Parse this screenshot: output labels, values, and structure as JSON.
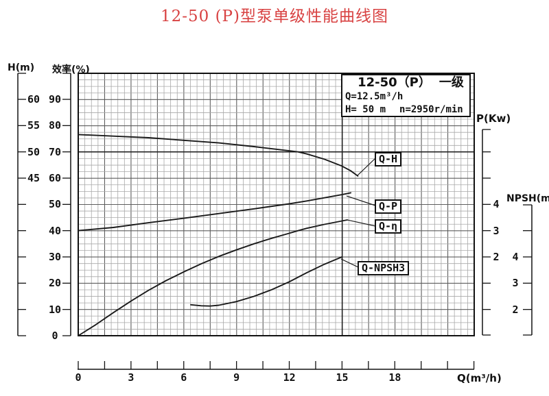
{
  "title": "12-50 (P)型泵单级性能曲线图",
  "info_box": {
    "model": "12-50（P）",
    "stage": "一级",
    "flow": "Q=12.5m³/h",
    "head": "H= 50 m",
    "speed": "n=2950r/min"
  },
  "axes": {
    "head": {
      "label": "H(m)",
      "tick_labels": [
        "60",
        "55",
        "50",
        "45"
      ]
    },
    "efficiency": {
      "label": "效率(%)",
      "tick_labels": [
        "90",
        "80",
        "70",
        "60",
        "50",
        "40",
        "30",
        "20",
        "10",
        "0"
      ]
    },
    "power": {
      "label": "P(Kw)",
      "tick_labels": [
        "4",
        "3",
        "2"
      ]
    },
    "npsh": {
      "label": "NPSH(m)",
      "tick_labels": [
        "4",
        "3",
        "2"
      ]
    },
    "flow": {
      "label": "Q(m³/h)",
      "tick_labels": [
        "0",
        "3",
        "6",
        "9",
        "12",
        "15",
        "18"
      ]
    }
  },
  "curve_labels": {
    "qh": "Q-H",
    "qp": "Q-P",
    "qeta": "Q-η",
    "qnpsh": "Q-NPSH3"
  },
  "colors": {
    "title": "#d84242",
    "curve": "#1a1a1a",
    "grid_minor": "#a8a8a8",
    "grid_major": "#5d5d5d",
    "axis": "#111111"
  },
  "chart_data": {
    "type": "line",
    "title": "12-50 (P)型泵单级性能曲线图",
    "grid": "fine graph-paper grid, major line every 4 minor cells",
    "x_axis": {
      "label": "Q(m³/h)",
      "range": [
        0,
        22.5
      ],
      "ticks": [
        0,
        3,
        6,
        9,
        12,
        15,
        18
      ]
    },
    "y_axes": [
      {
        "name": "H",
        "label": "H(m)",
        "ticks": [
          60,
          55,
          50,
          45
        ]
      },
      {
        "name": "efficiency",
        "label": "效率(%)",
        "ticks": [
          90,
          80,
          70,
          60,
          50,
          40,
          30,
          20,
          10,
          0
        ]
      },
      {
        "name": "P",
        "label": "P(Kw)",
        "ticks": [
          4,
          3,
          2
        ]
      },
      {
        "name": "NPSH",
        "label": "NPSH(m)",
        "ticks": [
          4,
          3,
          2
        ]
      }
    ],
    "series": [
      {
        "name": "Q-H",
        "y_axis": "H",
        "unit": "m",
        "points": [
          [
            0,
            53.3
          ],
          [
            2,
            53.0
          ],
          [
            4,
            52.7
          ],
          [
            6,
            52.2
          ],
          [
            8,
            51.7
          ],
          [
            10,
            51.0
          ],
          [
            12,
            50.2
          ],
          [
            12.5,
            50.0
          ],
          [
            13,
            49.6
          ],
          [
            14,
            48.6
          ],
          [
            15,
            47.3
          ],
          [
            15.5,
            46.4
          ],
          [
            15.9,
            45.4
          ]
        ]
      },
      {
        "name": "Q-P",
        "y_axis": "P",
        "unit": "Kw",
        "points": [
          [
            0,
            3.0
          ],
          [
            2,
            3.12
          ],
          [
            4,
            3.3
          ],
          [
            6,
            3.47
          ],
          [
            8,
            3.65
          ],
          [
            10,
            3.83
          ],
          [
            12,
            4.02
          ],
          [
            13,
            4.13
          ],
          [
            14,
            4.25
          ],
          [
            15,
            4.37
          ],
          [
            15.5,
            4.44
          ]
        ]
      },
      {
        "name": "Q-η",
        "y_axis": "efficiency",
        "unit": "%",
        "points": [
          [
            0,
            0
          ],
          [
            0.5,
            2.1
          ],
          [
            1,
            4.2
          ],
          [
            2,
            8.8
          ],
          [
            3,
            13.2
          ],
          [
            4,
            17.3
          ],
          [
            5,
            21.0
          ],
          [
            6,
            24.3
          ],
          [
            7,
            27.4
          ],
          [
            8,
            30.2
          ],
          [
            9,
            32.7
          ],
          [
            10,
            35.0
          ],
          [
            11,
            37.1
          ],
          [
            12,
            39.0
          ],
          [
            12.5,
            40.0
          ],
          [
            13,
            40.9
          ],
          [
            14,
            42.4
          ],
          [
            15,
            43.7
          ],
          [
            15.3,
            44.1
          ]
        ]
      },
      {
        "name": "Q-NPSH3",
        "y_axis": "NPSH",
        "unit": "m",
        "points": [
          [
            6.4,
            2.18
          ],
          [
            7,
            2.14
          ],
          [
            7.5,
            2.13
          ],
          [
            8,
            2.16
          ],
          [
            9,
            2.3
          ],
          [
            10,
            2.5
          ],
          [
            11,
            2.75
          ],
          [
            12,
            3.05
          ],
          [
            13,
            3.4
          ],
          [
            14,
            3.72
          ],
          [
            15,
            4.0
          ]
        ]
      }
    ],
    "rated_point": {
      "Q_m3h": 12.5,
      "H_m": 50,
      "n_rpm": 2950
    }
  }
}
